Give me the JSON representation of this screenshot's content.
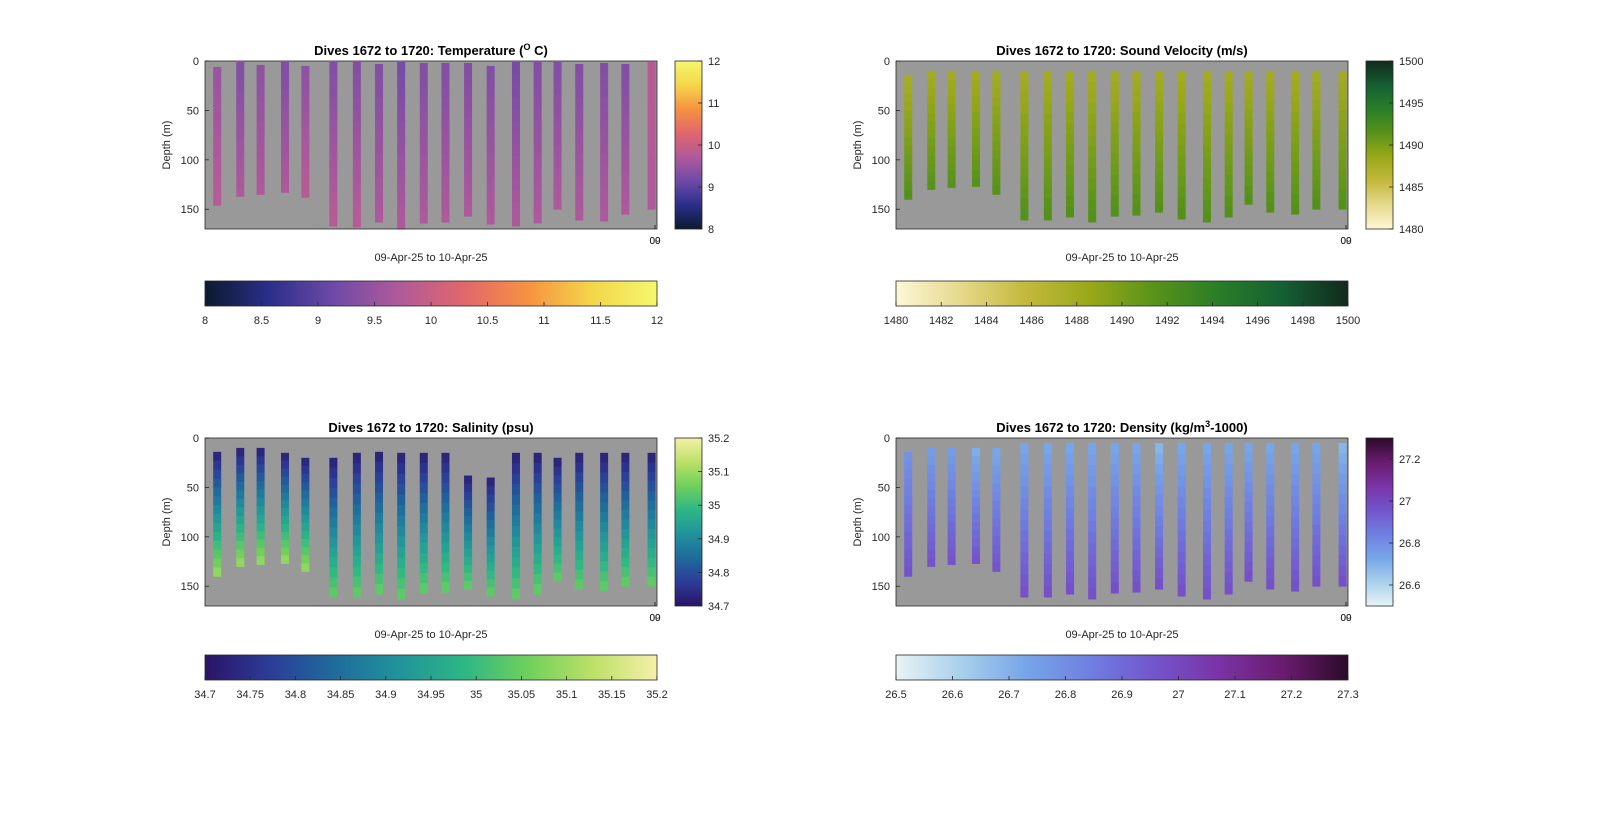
{
  "chart_data": [
    {
      "type": "heatmap",
      "id": "temperature",
      "title": "Dives 1672 to 1720: Temperature (",
      "title_sup": "O",
      "title_end": " C)",
      "xlabel": "09-Apr-25 to 10-Apr-25",
      "ylabel": "Depth (m)",
      "y_ticks": [
        0,
        50,
        100,
        150
      ],
      "y_range": [
        0,
        170
      ],
      "x_tick_labels": [
        "09",
        "00"
      ],
      "clim": [
        8,
        12
      ],
      "colormap": [
        "#0b1a2e",
        "#2b2f8a",
        "#6e4aa8",
        "#b05a9a",
        "#e0666c",
        "#f69240",
        "#f4d64a",
        "#f5f76e"
      ],
      "right_colorbar_ticks": [
        8,
        9,
        10,
        11,
        12
      ],
      "right_colorbar_labels": [
        "8",
        "9",
        "10",
        "11",
        "12"
      ],
      "bottom_colorbar_ticks": [
        8,
        8.5,
        9,
        9.5,
        10,
        10.5,
        11,
        11.5,
        12
      ],
      "bottom_colorbar_labels": [
        "8",
        "8.5",
        "9",
        "9.5",
        "10",
        "10.5",
        "11",
        "11.5",
        "12"
      ],
      "profiles": [
        {
          "start": 6,
          "end": 146,
          "top": 9.5,
          "bottom": 9.8
        },
        {
          "start": 1,
          "end": 137,
          "top": 9.3,
          "bottom": 9.7
        },
        {
          "start": 4,
          "end": 135,
          "top": 9.4,
          "bottom": 9.7
        },
        {
          "start": 1,
          "end": 133,
          "top": 9.3,
          "bottom": 9.7
        },
        {
          "start": 5,
          "end": 138,
          "top": 9.4,
          "bottom": 9.8
        },
        {
          "start": 1,
          "end": 167,
          "top": 9.3,
          "bottom": 9.8
        },
        {
          "start": 1,
          "end": 168,
          "top": 9.3,
          "bottom": 9.8
        },
        {
          "start": 3,
          "end": 163,
          "top": 9.3,
          "bottom": 9.7
        },
        {
          "start": 1,
          "end": 170,
          "top": 9.2,
          "bottom": 9.7
        },
        {
          "start": 2,
          "end": 164,
          "top": 9.3,
          "bottom": 9.7
        },
        {
          "start": 2,
          "end": 163,
          "top": 9.3,
          "bottom": 9.7
        },
        {
          "start": 2,
          "end": 157,
          "top": 9.3,
          "bottom": 9.7
        },
        {
          "start": 5,
          "end": 165,
          "top": 9.3,
          "bottom": 9.7
        },
        {
          "start": 1,
          "end": 167,
          "top": 9.2,
          "bottom": 9.7
        },
        {
          "start": 1,
          "end": 164,
          "top": 9.3,
          "bottom": 9.7
        },
        {
          "start": 1,
          "end": 150,
          "top": 9.3,
          "bottom": 9.7
        },
        {
          "start": 3,
          "end": 161,
          "top": 9.3,
          "bottom": 9.7
        },
        {
          "start": 2,
          "end": 162,
          "top": 9.3,
          "bottom": 9.7
        },
        {
          "start": 3,
          "end": 155,
          "top": 9.3,
          "bottom": 9.7
        },
        {
          "start": 1,
          "end": 150,
          "top": 9.8,
          "bottom": 9.7
        }
      ]
    },
    {
      "type": "heatmap",
      "id": "sound-velocity",
      "title": "Dives 1672 to 1720: Sound Velocity (m/s)",
      "title_sup": "",
      "title_end": "",
      "xlabel": "09-Apr-25 to 10-Apr-25",
      "ylabel": "Depth (m)",
      "y_ticks": [
        0,
        50,
        100,
        150
      ],
      "y_range": [
        0,
        170
      ],
      "x_tick_labels": [
        "09",
        "00"
      ],
      "clim": [
        1480,
        1500
      ],
      "colormap": [
        "#fdf7d6",
        "#e5d98c",
        "#c3b93c",
        "#99a819",
        "#58931a",
        "#2a7e28",
        "#145f33",
        "#122a1c"
      ],
      "right_colorbar_ticks": [
        1480,
        1485,
        1490,
        1495,
        1500
      ],
      "right_colorbar_labels": [
        "1480",
        "1485",
        "1490",
        "1495",
        "1500"
      ],
      "bottom_colorbar_ticks": [
        1480,
        1482,
        1484,
        1486,
        1488,
        1490,
        1492,
        1494,
        1496,
        1498,
        1500
      ],
      "bottom_colorbar_labels": [
        "1480",
        "1482",
        "1484",
        "1486",
        "1488",
        "1490",
        "1492",
        "1494",
        "1496",
        "1498",
        "1500"
      ],
      "profiles": [
        {
          "start": 14,
          "end": 140,
          "top": 1487.5,
          "bottom": 1491.8
        },
        {
          "start": 10,
          "end": 130,
          "top": 1487.8,
          "bottom": 1491.6
        },
        {
          "start": 10,
          "end": 128,
          "top": 1487.8,
          "bottom": 1491.6
        },
        {
          "start": 10,
          "end": 127,
          "top": 1487.8,
          "bottom": 1491.6
        },
        {
          "start": 10,
          "end": 135,
          "top": 1487.8,
          "bottom": 1491.6
        },
        {
          "start": 10,
          "end": 161,
          "top": 1487.8,
          "bottom": 1491.8
        },
        {
          "start": 10,
          "end": 161,
          "top": 1487.8,
          "bottom": 1491.8
        },
        {
          "start": 10,
          "end": 158,
          "top": 1487.8,
          "bottom": 1491.8
        },
        {
          "start": 10,
          "end": 163,
          "top": 1487.8,
          "bottom": 1491.8
        },
        {
          "start": 10,
          "end": 157,
          "top": 1487.8,
          "bottom": 1491.8
        },
        {
          "start": 10,
          "end": 156,
          "top": 1487.8,
          "bottom": 1491.8
        },
        {
          "start": 10,
          "end": 153,
          "top": 1487.8,
          "bottom": 1491.8
        },
        {
          "start": 10,
          "end": 160,
          "top": 1487.8,
          "bottom": 1491.8
        },
        {
          "start": 10,
          "end": 163,
          "top": 1487.8,
          "bottom": 1491.8
        },
        {
          "start": 10,
          "end": 158,
          "top": 1487.8,
          "bottom": 1491.8
        },
        {
          "start": 10,
          "end": 145,
          "top": 1487.8,
          "bottom": 1491.8
        },
        {
          "start": 10,
          "end": 153,
          "top": 1487.8,
          "bottom": 1491.8
        },
        {
          "start": 10,
          "end": 155,
          "top": 1487.8,
          "bottom": 1491.8
        },
        {
          "start": 10,
          "end": 150,
          "top": 1487.8,
          "bottom": 1491.8
        },
        {
          "start": 10,
          "end": 150,
          "top": 1487.8,
          "bottom": 1491.8
        }
      ]
    },
    {
      "type": "heatmap",
      "id": "salinity",
      "title": "Dives 1672 to 1720: Salinity (psu)",
      "title_sup": "",
      "title_end": "",
      "xlabel": "09-Apr-25 to 10-Apr-25",
      "ylabel": "Depth (m)",
      "y_ticks": [
        0,
        50,
        100,
        150
      ],
      "y_range": [
        0,
        170
      ],
      "x_tick_labels": [
        "09",
        "00"
      ],
      "clim": [
        34.7,
        35.2
      ],
      "colormap": [
        "#2a1466",
        "#2c3c98",
        "#1f6b9c",
        "#21939b",
        "#2db685",
        "#6fd05c",
        "#bce067",
        "#f5f0a8"
      ],
      "right_colorbar_ticks": [
        34.7,
        34.8,
        34.9,
        35,
        35.1,
        35.2
      ],
      "right_colorbar_labels": [
        "34.7",
        "34.8",
        "34.9",
        "35",
        "35.1",
        "35.2"
      ],
      "bottom_colorbar_ticks": [
        34.7,
        34.75,
        34.8,
        34.85,
        34.9,
        34.95,
        35,
        35.05,
        35.1,
        35.15,
        35.2
      ],
      "bottom_colorbar_labels": [
        "34.7",
        "34.75",
        "34.8",
        "34.85",
        "34.9",
        "34.95",
        "35",
        "35.05",
        "35.1",
        "35.15",
        "35.2"
      ],
      "profiles": [
        {
          "start": 14,
          "end": 140,
          "top": 34.72,
          "bottom": 35.1
        },
        {
          "start": 10,
          "end": 130,
          "top": 34.72,
          "bottom": 35.1
        },
        {
          "start": 10,
          "end": 128,
          "top": 34.72,
          "bottom": 35.1
        },
        {
          "start": 15,
          "end": 127,
          "top": 34.72,
          "bottom": 35.1
        },
        {
          "start": 20,
          "end": 135,
          "top": 34.72,
          "bottom": 35.1
        },
        {
          "start": 20,
          "end": 161,
          "top": 34.72,
          "bottom": 35.05
        },
        {
          "start": 15,
          "end": 161,
          "top": 34.72,
          "bottom": 35.05
        },
        {
          "start": 14,
          "end": 158,
          "top": 34.72,
          "bottom": 35.05
        },
        {
          "start": 15,
          "end": 163,
          "top": 34.72,
          "bottom": 35.05
        },
        {
          "start": 15,
          "end": 157,
          "top": 34.72,
          "bottom": 35.05
        },
        {
          "start": 15,
          "end": 156,
          "top": 34.72,
          "bottom": 35.05
        },
        {
          "start": 38,
          "end": 153,
          "top": 34.72,
          "bottom": 35.05
        },
        {
          "start": 40,
          "end": 160,
          "top": 34.72,
          "bottom": 35.05
        },
        {
          "start": 15,
          "end": 163,
          "top": 34.72,
          "bottom": 35.05
        },
        {
          "start": 15,
          "end": 158,
          "top": 34.72,
          "bottom": 35.05
        },
        {
          "start": 20,
          "end": 145,
          "top": 34.72,
          "bottom": 35.05
        },
        {
          "start": 15,
          "end": 153,
          "top": 34.72,
          "bottom": 35.05
        },
        {
          "start": 15,
          "end": 155,
          "top": 34.72,
          "bottom": 35.05
        },
        {
          "start": 15,
          "end": 150,
          "top": 34.72,
          "bottom": 35.05
        },
        {
          "start": 15,
          "end": 150,
          "top": 34.72,
          "bottom": 35.05
        }
      ]
    },
    {
      "type": "heatmap",
      "id": "density",
      "title": "Dives 1672 to 1720: Density (kg/m",
      "title_sup": "3",
      "title_end": "-1000)",
      "xlabel": "09-Apr-25 to 10-Apr-25",
      "ylabel": "Depth (m)",
      "y_ticks": [
        0,
        50,
        100,
        150
      ],
      "y_range": [
        0,
        170
      ],
      "x_tick_labels": [
        "09",
        "00"
      ],
      "clim": [
        26.5,
        27.3
      ],
      "colormap": [
        "#e8f3f5",
        "#a9d0ec",
        "#77a6e8",
        "#6f7fe0",
        "#7355cc",
        "#7a33a6",
        "#6a1c6e",
        "#2b0a2a"
      ],
      "right_colorbar_ticks": [
        26.6,
        26.8,
        27,
        27.2
      ],
      "right_colorbar_labels": [
        "26.6",
        "26.8",
        "27",
        "27.2"
      ],
      "bottom_colorbar_ticks": [
        26.5,
        26.6,
        26.7,
        26.8,
        26.9,
        27,
        27.1,
        27.2,
        27.3
      ],
      "bottom_colorbar_labels": [
        "26.5",
        "26.6",
        "26.7",
        "26.8",
        "26.9",
        "27",
        "27.1",
        "27.2",
        "27.3"
      ],
      "profiles": [
        {
          "start": 14,
          "end": 140,
          "top": 26.78,
          "bottom": 26.97
        },
        {
          "start": 10,
          "end": 130,
          "top": 26.75,
          "bottom": 26.97
        },
        {
          "start": 10,
          "end": 128,
          "top": 26.75,
          "bottom": 26.97
        },
        {
          "start": 10,
          "end": 127,
          "top": 26.7,
          "bottom": 26.97
        },
        {
          "start": 10,
          "end": 135,
          "top": 26.72,
          "bottom": 26.97
        },
        {
          "start": 5,
          "end": 161,
          "top": 26.72,
          "bottom": 26.98
        },
        {
          "start": 5,
          "end": 161,
          "top": 26.72,
          "bottom": 26.98
        },
        {
          "start": 5,
          "end": 158,
          "top": 26.72,
          "bottom": 26.98
        },
        {
          "start": 5,
          "end": 163,
          "top": 26.72,
          "bottom": 26.98
        },
        {
          "start": 5,
          "end": 157,
          "top": 26.72,
          "bottom": 26.98
        },
        {
          "start": 5,
          "end": 156,
          "top": 26.72,
          "bottom": 26.98
        },
        {
          "start": 5,
          "end": 153,
          "top": 26.68,
          "bottom": 26.98
        },
        {
          "start": 5,
          "end": 160,
          "top": 26.72,
          "bottom": 26.98
        },
        {
          "start": 5,
          "end": 163,
          "top": 26.72,
          "bottom": 26.98
        },
        {
          "start": 5,
          "end": 158,
          "top": 26.72,
          "bottom": 26.98
        },
        {
          "start": 5,
          "end": 145,
          "top": 26.72,
          "bottom": 26.98
        },
        {
          "start": 5,
          "end": 153,
          "top": 26.72,
          "bottom": 26.98
        },
        {
          "start": 5,
          "end": 155,
          "top": 26.72,
          "bottom": 26.98
        },
        {
          "start": 5,
          "end": 150,
          "top": 26.72,
          "bottom": 26.98
        },
        {
          "start": 5,
          "end": 150,
          "top": 26.68,
          "bottom": 26.98
        }
      ]
    }
  ]
}
